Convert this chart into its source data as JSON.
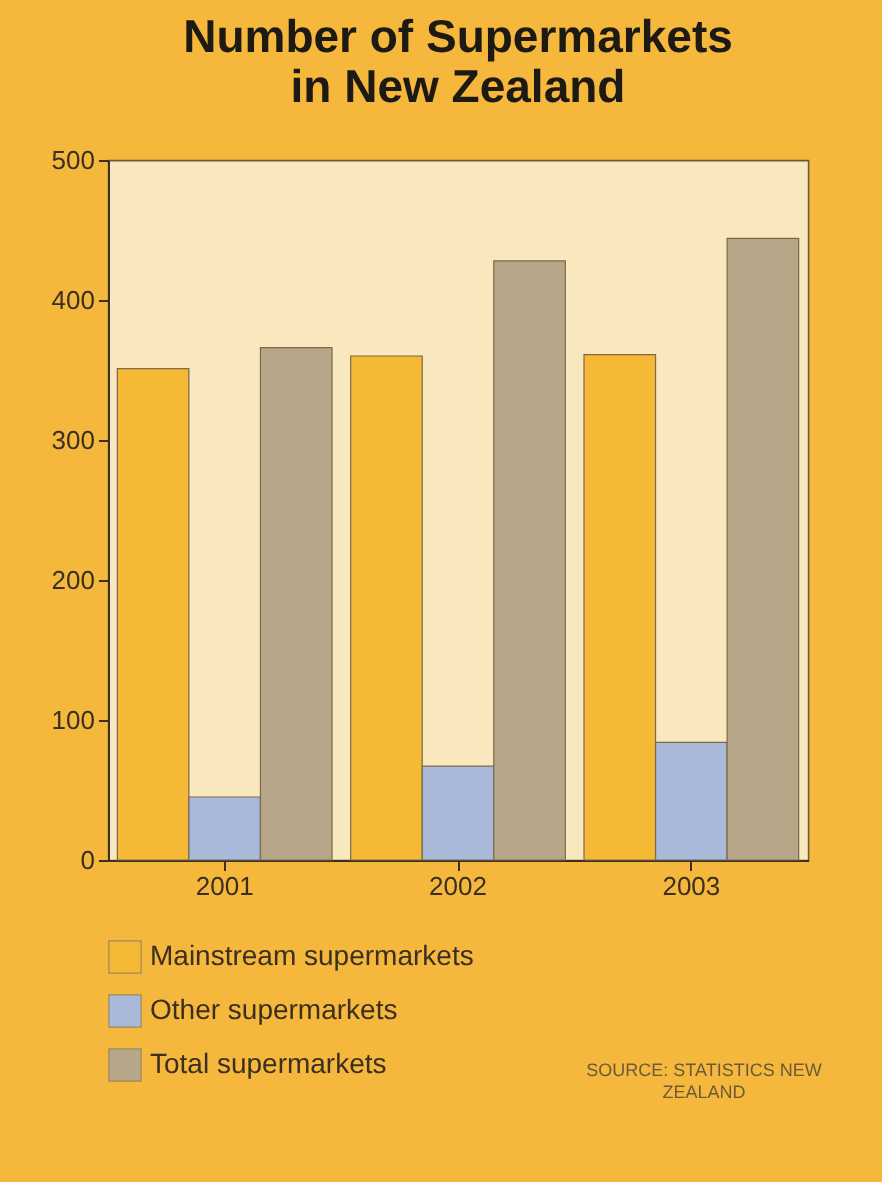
{
  "chart_data": {
    "type": "bar",
    "title": "Number of Supermarkets in New Zealand",
    "categories": [
      "2001",
      "2002",
      "2003"
    ],
    "series": [
      {
        "name": "Mainstream supermarkets",
        "color": "#f6b935",
        "values": [
          351,
          360,
          361
        ]
      },
      {
        "name": "Other supermarkets",
        "color": "#a9b9d9",
        "values": [
          45,
          67,
          84
        ]
      },
      {
        "name": "Total supermarkets",
        "color": "#b8a688",
        "values": [
          366,
          428,
          444
        ]
      }
    ],
    "ylim": [
      0,
      500
    ],
    "yticks": [
      0,
      100,
      200,
      300,
      400,
      500
    ],
    "grid": false,
    "legend": "bottom",
    "annotations": [
      "SOURCE: STATISTICS NEW ZEALAND"
    ]
  }
}
